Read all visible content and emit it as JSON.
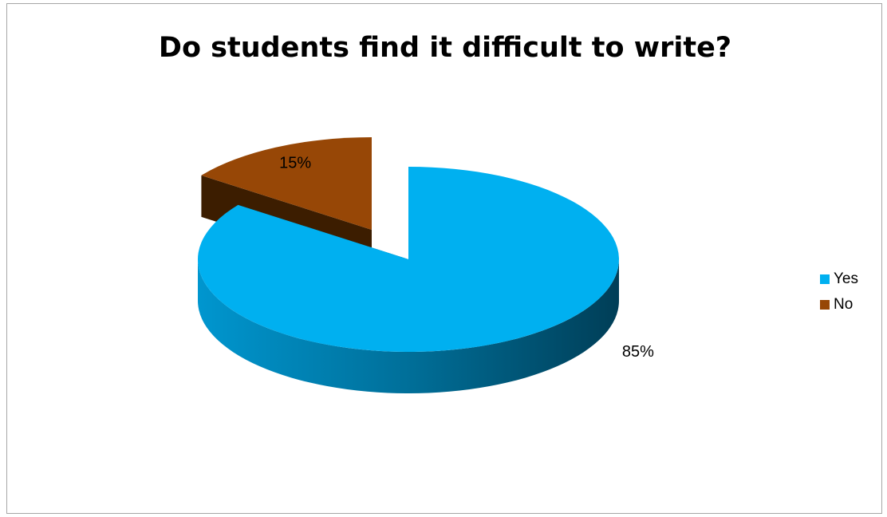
{
  "chart_data": {
    "type": "pie",
    "title": "Do students find it difficult to write?",
    "style": "3d-exploded",
    "categories": [
      "Yes",
      "No"
    ],
    "values": [
      85,
      15
    ],
    "value_labels": [
      "85%",
      "15%"
    ],
    "colors": [
      "#00b0f0",
      "#974706"
    ],
    "legend_position": "right"
  }
}
